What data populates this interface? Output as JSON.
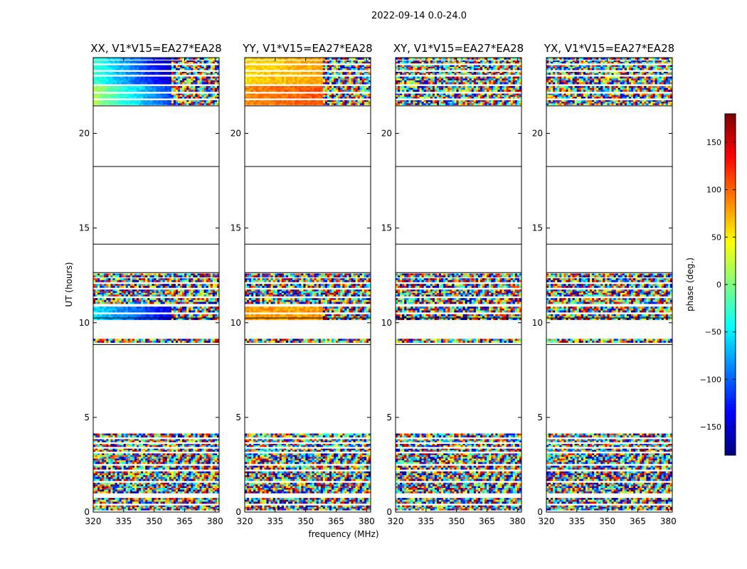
{
  "figure": {
    "suptitle": "2022-09-14 0.0-24.0"
  },
  "colors": {
    "colormap": [
      "#00007f",
      "#0000ff",
      "#007fff",
      "#00ffff",
      "#7fff7f",
      "#ffff00",
      "#ff7f00",
      "#ff0000",
      "#7f0000"
    ]
  },
  "chart_data": {
    "type": "heatmap",
    "xlabel": "frequency (MHz)",
    "ylabel": "UT (hours)",
    "xlim": [
      320,
      382
    ],
    "ylim": [
      0,
      24
    ],
    "xticks": [
      320,
      335,
      350,
      365,
      380
    ],
    "yticks": [
      0,
      5,
      10,
      15,
      20
    ],
    "panels": [
      {
        "title": "XX, V1*V15=EA27*EA28",
        "polarization": "XX",
        "mode": "xx"
      },
      {
        "title": "YY, V1*V15=EA27*EA28",
        "polarization": "YY",
        "mode": "yy"
      },
      {
        "title": "XY, V1*V15=EA27*EA28",
        "polarization": "XY",
        "mode": "noise"
      },
      {
        "title": "YX, V1*V15=EA27*EA28",
        "polarization": "YX",
        "mode": "noise"
      }
    ],
    "data_bands_hours": [
      [
        0.1,
        0.35
      ],
      [
        0.45,
        0.75
      ],
      [
        1.0,
        1.55
      ],
      [
        1.65,
        2.15
      ],
      [
        2.25,
        2.45
      ],
      [
        2.55,
        3.1
      ],
      [
        3.2,
        3.35
      ],
      [
        3.45,
        3.6
      ],
      [
        3.7,
        3.85
      ],
      [
        3.95,
        4.15
      ],
      [
        8.95,
        9.15
      ],
      [
        10.15,
        10.45
      ],
      [
        10.55,
        10.85
      ],
      [
        11.0,
        11.3
      ],
      [
        11.4,
        11.75
      ],
      [
        11.85,
        12.05
      ],
      [
        12.15,
        12.35
      ],
      [
        12.4,
        12.6
      ],
      [
        21.5,
        21.75
      ],
      [
        21.85,
        22.1
      ],
      [
        22.2,
        22.5
      ],
      [
        22.6,
        23.0
      ],
      [
        23.1,
        23.25
      ],
      [
        23.35,
        23.6
      ],
      [
        23.7,
        23.85
      ],
      [
        23.9,
        24.0
      ]
    ],
    "scan_boundaries_hours": [
      8.85,
      10.25,
      12.65,
      14.15,
      18.25,
      21.45
    ],
    "colorbar": {
      "label": "phase (deg.)",
      "range": [
        -180,
        180
      ],
      "ticks": [
        -150,
        -100,
        -50,
        0,
        50,
        100,
        150
      ],
      "tick_labels": [
        "−150",
        "−100",
        "−50",
        "0",
        "50",
        "100",
        "150"
      ]
    }
  }
}
